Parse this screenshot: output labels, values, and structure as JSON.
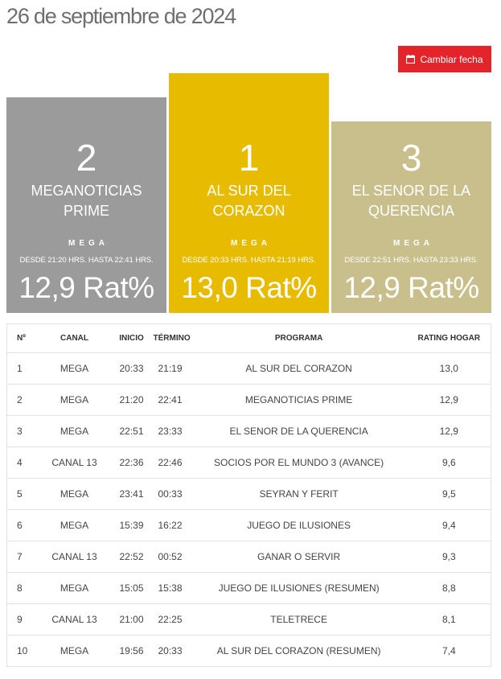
{
  "page": {
    "title": "26 de septiembre de 2024"
  },
  "actions": {
    "change_date_label": "Cambiar fecha"
  },
  "podium": [
    {
      "rank": "2",
      "program": "MEGANOTICIAS PRIME",
      "channel": "MEGA",
      "schedule": "DESDE 21:20 HRS. HASTA 22:41 HRS.",
      "rating": "12,9 Rat%",
      "color": "#9b9b9b"
    },
    {
      "rank": "1",
      "program": "AL SUR DEL CORAZON",
      "channel": "MEGA",
      "schedule": "DESDE 20:33 HRS. HASTA 21:19 HRS.",
      "rating": "13,0 Rat%",
      "color": "#e7bb00"
    },
    {
      "rank": "3",
      "program": "EL SENOR DE LA QUERENCIA",
      "channel": "MEGA",
      "schedule": "DESDE 22:51 HRS. HASTA 23:33 HRS.",
      "rating": "12,9 Rat%",
      "color": "#c8bf8c"
    }
  ],
  "table": {
    "headers": [
      "Nº",
      "CANAL",
      "INICIO",
      "TÉRMINO",
      "PROGRAMA",
      "RATING HOGAR"
    ],
    "rows": [
      [
        "1",
        "MEGA",
        "20:33",
        "21:19",
        "AL SUR DEL CORAZON",
        "13,0"
      ],
      [
        "2",
        "MEGA",
        "21:20",
        "22:41",
        "MEGANOTICIAS PRIME",
        "12,9"
      ],
      [
        "3",
        "MEGA",
        "22:51",
        "23:33",
        "EL SENOR DE LA QUERENCIA",
        "12,9"
      ],
      [
        "4",
        "CANAL 13",
        "22:36",
        "22:46",
        "SOCIOS POR EL MUNDO 3 (AVANCE)",
        "9,6"
      ],
      [
        "5",
        "MEGA",
        "23:41",
        "00:33",
        "SEYRAN Y FERIT",
        "9,5"
      ],
      [
        "6",
        "MEGA",
        "15:39",
        "16:22",
        "JUEGO DE ILUSIONES",
        "9,4"
      ],
      [
        "7",
        "CANAL 13",
        "22:52",
        "00:52",
        "GANAR O SERVIR",
        "9,3"
      ],
      [
        "8",
        "MEGA",
        "15:05",
        "15:38",
        "JUEGO DE ILUSIONES (RESUMEN)",
        "8,8"
      ],
      [
        "9",
        "CANAL 13",
        "21:00",
        "22:25",
        "TELETRECE",
        "8,1"
      ],
      [
        "10",
        "MEGA",
        "19:56",
        "20:33",
        "AL SUR DEL CORAZON (RESUMEN)",
        "7,4"
      ]
    ]
  },
  "icons": {
    "change_date": "calendar-icon"
  },
  "colors": {
    "accent": "#e3242b"
  }
}
